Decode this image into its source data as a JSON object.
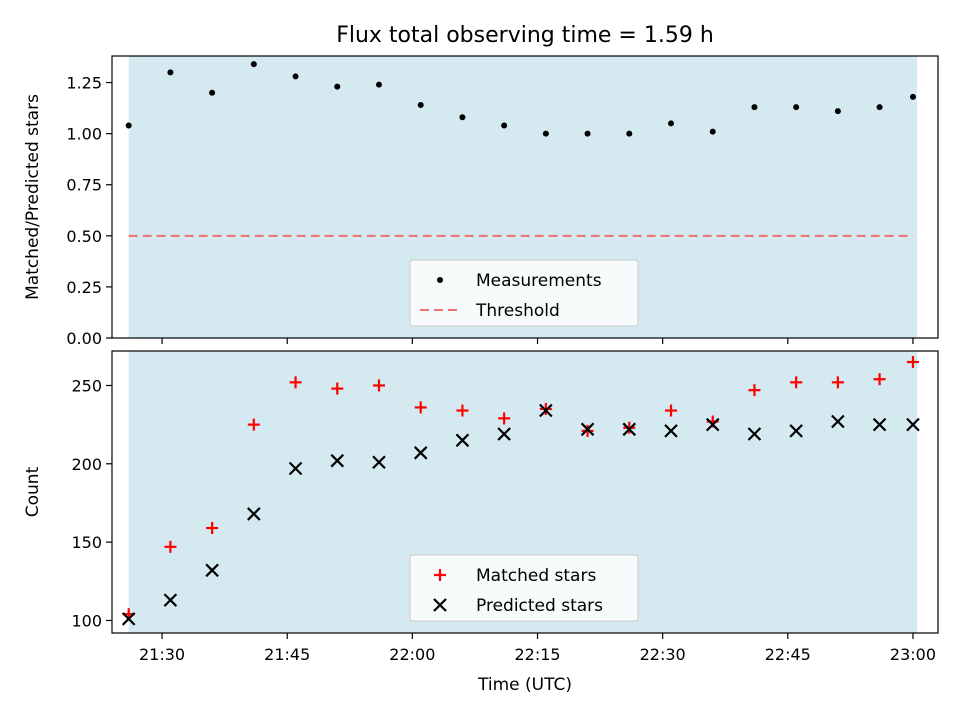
{
  "chart_data": [
    {
      "type": "scatter",
      "title": "Flux total observing time = 1.59 h",
      "xlabel": "",
      "ylabel": "Matched/Predicted stars",
      "xlim": [
        "21:24:00",
        "23:03:00"
      ],
      "ylim": [
        0,
        1.38
      ],
      "yticks": [
        "0.00",
        "0.25",
        "0.50",
        "0.75",
        "1.00",
        "1.25"
      ],
      "shaded_span": [
        "21:26:00",
        "23:00:30"
      ],
      "shade_color": "#d4eaf0",
      "grid": false,
      "legend_position": "lower center",
      "series": [
        {
          "name": "Measurements",
          "marker": "dot",
          "color": "#000000",
          "x": [
            "21:26",
            "21:31",
            "21:36",
            "21:41",
            "21:46",
            "21:51",
            "21:56",
            "22:01",
            "22:06",
            "22:11",
            "22:16",
            "22:21",
            "22:26",
            "22:31",
            "22:36",
            "22:41",
            "22:46",
            "22:51",
            "22:56",
            "23:00"
          ],
          "y": [
            1.04,
            1.3,
            1.2,
            1.34,
            1.28,
            1.23,
            1.24,
            1.14,
            1.08,
            1.04,
            1.0,
            1.0,
            1.0,
            1.05,
            1.01,
            1.13,
            1.13,
            1.11,
            1.13,
            1.18
          ]
        },
        {
          "name": "Threshold",
          "marker": "dashed-line",
          "color": "#f07070",
          "x": [
            "21:26",
            "23:00"
          ],
          "y": [
            0.5,
            0.5
          ]
        }
      ]
    },
    {
      "type": "scatter",
      "xlabel": "Time (UTC)",
      "ylabel": "Count",
      "xlim": [
        "21:24:00",
        "23:03:00"
      ],
      "ylim": [
        92,
        272
      ],
      "yticks": [
        "100",
        "150",
        "200",
        "250"
      ],
      "xticks": [
        "21:30",
        "21:45",
        "22:00",
        "22:15",
        "22:30",
        "22:45",
        "23:00"
      ],
      "shaded_span": [
        "21:26:00",
        "23:00:30"
      ],
      "shade_color": "#d4eaf0",
      "grid": false,
      "legend_position": "lower center",
      "series": [
        {
          "name": "Matched stars",
          "marker": "plus",
          "color": "#ff0000",
          "x": [
            "21:26",
            "21:31",
            "21:36",
            "21:41",
            "21:46",
            "21:51",
            "21:56",
            "22:01",
            "22:06",
            "22:11",
            "22:16",
            "22:21",
            "22:26",
            "22:31",
            "22:36",
            "22:41",
            "22:46",
            "22:51",
            "22:56",
            "23:00"
          ],
          "y": [
            104,
            147,
            159,
            225,
            252,
            248,
            250,
            236,
            234,
            229,
            235,
            221,
            223,
            234,
            227,
            247,
            252,
            252,
            254,
            265
          ]
        },
        {
          "name": "Predicted stars",
          "marker": "x",
          "color": "#000000",
          "x": [
            "21:26",
            "21:31",
            "21:36",
            "21:41",
            "21:46",
            "21:51",
            "21:56",
            "22:01",
            "22:06",
            "22:11",
            "22:16",
            "22:21",
            "22:26",
            "22:31",
            "22:36",
            "22:41",
            "22:46",
            "22:51",
            "22:56",
            "23:00"
          ],
          "y": [
            101,
            113,
            132,
            168,
            197,
            202,
            201,
            207,
            215,
            219,
            234,
            222,
            222,
            221,
            225,
            219,
            221,
            227,
            225,
            225
          ]
        }
      ]
    }
  ]
}
